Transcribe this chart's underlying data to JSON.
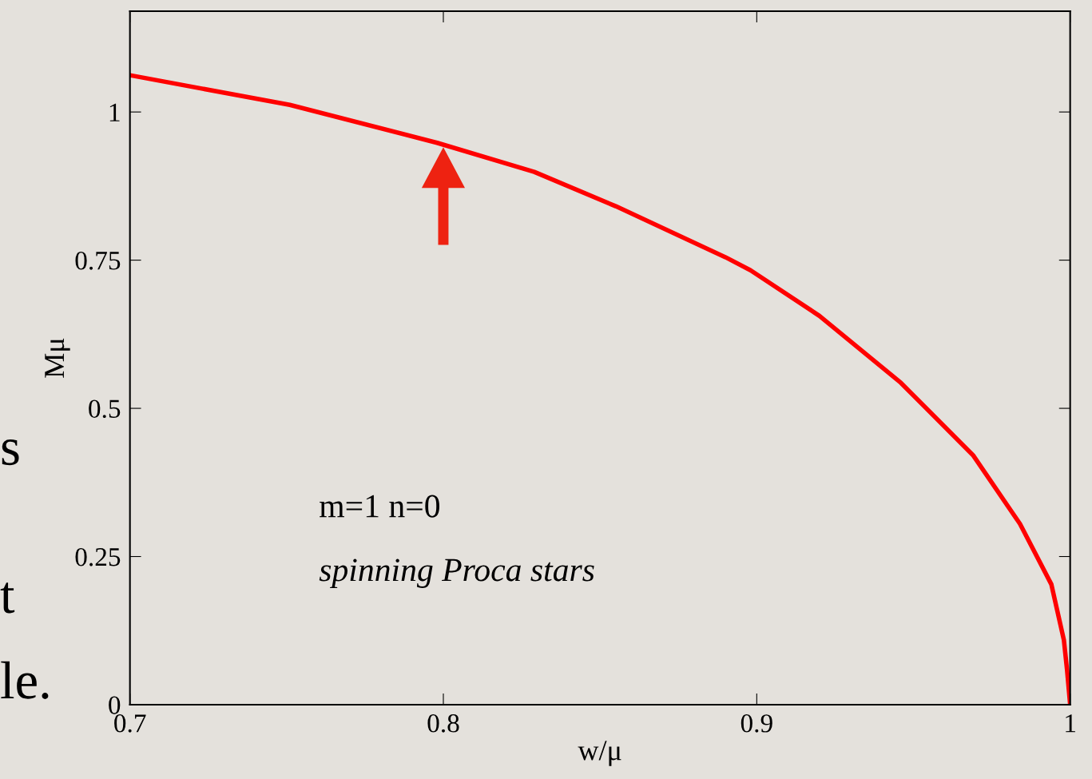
{
  "chart_data": {
    "type": "line",
    "xlabel": "w/μ",
    "ylabel": "Mμ",
    "x": [
      0.7,
      0.751,
      0.798,
      0.829,
      0.855,
      0.89,
      0.898,
      0.92,
      0.946,
      0.969,
      0.984,
      0.994,
      0.998,
      0.999,
      1.0
    ],
    "series": [
      {
        "color": "#ff0000",
        "values": [
          1.062,
          1.012,
          0.948,
          0.899,
          0.841,
          0.755,
          0.733,
          0.656,
          0.543,
          0.421,
          0.305,
          0.203,
          0.109,
          0.059,
          0.0
        ]
      }
    ],
    "xlim": [
      0.7,
      1.0
    ],
    "ylim": [
      0,
      1.17
    ],
    "xticks": [
      0.7,
      0.8,
      0.9,
      {
        "value": 1.0,
        "label": "1"
      }
    ],
    "yticks": [
      0,
      0.25,
      0.5,
      0.75,
      1
    ],
    "grid": false,
    "legend": false,
    "marker": "none",
    "line_style": "solid",
    "annotations": [
      "m=1 n=0",
      "spinning Proca stars",
      "s",
      "t",
      "le."
    ]
  }
}
